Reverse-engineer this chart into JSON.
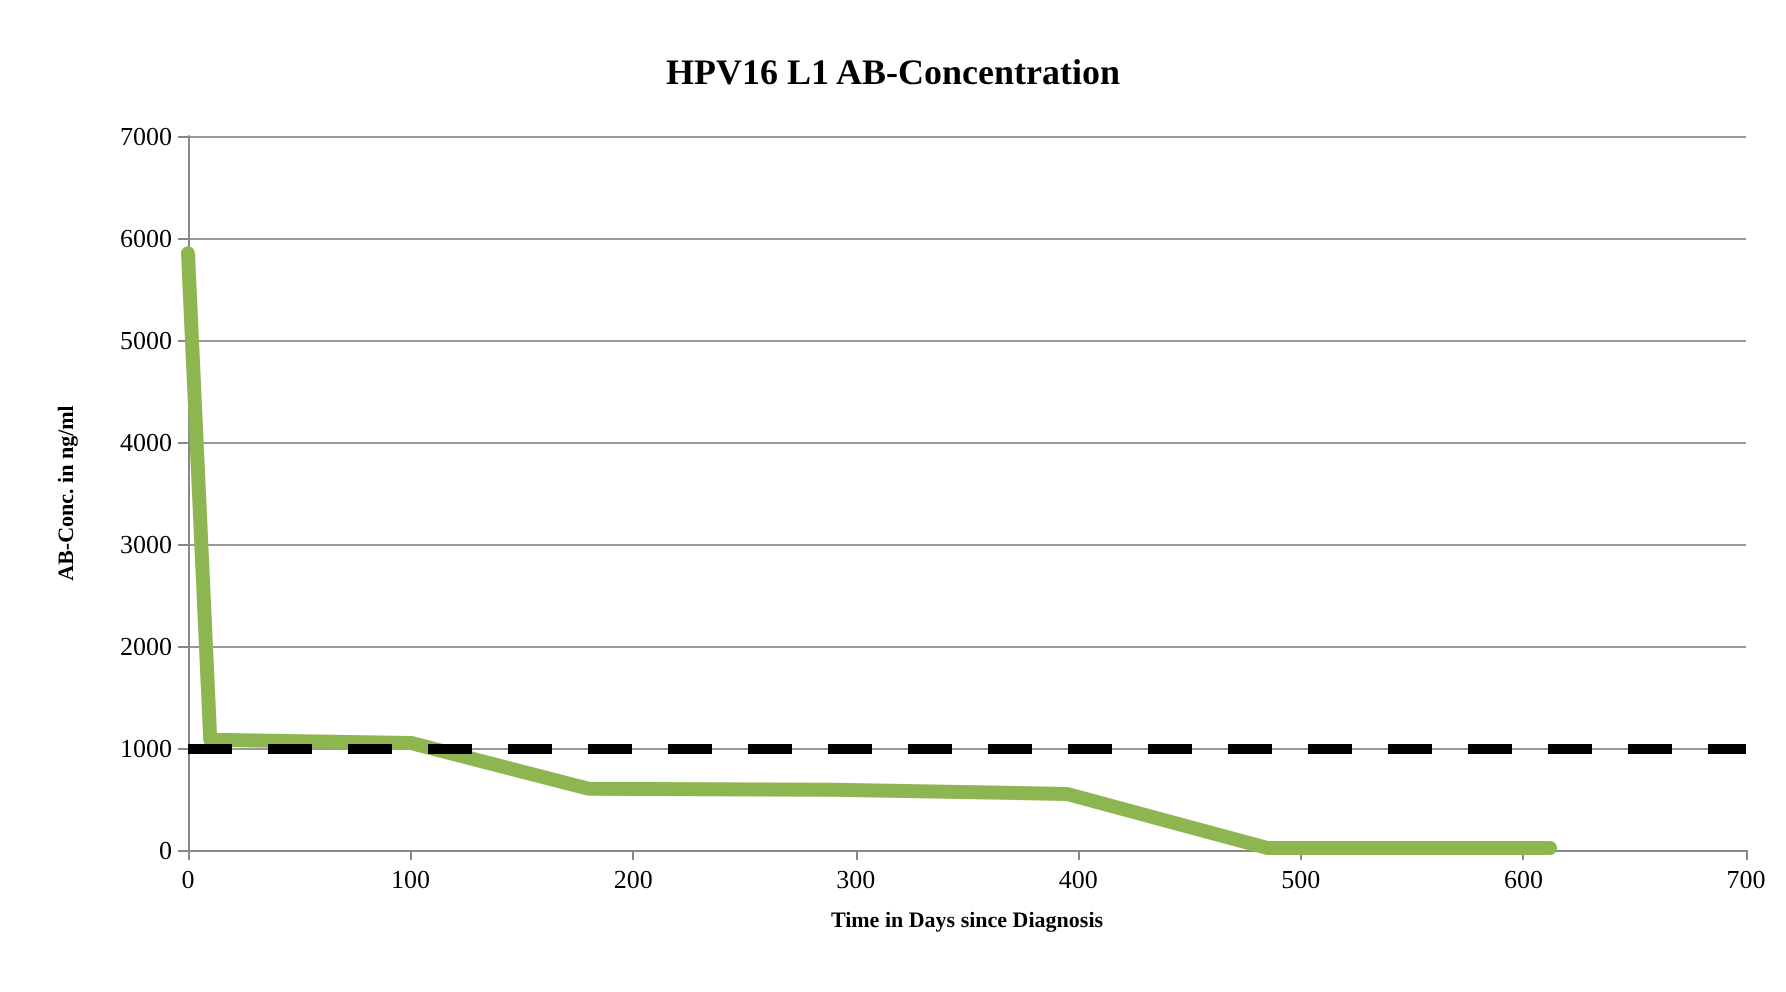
{
  "chart_data": {
    "type": "line",
    "title": "HPV16 L1 AB-Concentration",
    "xlabel": "Time in Days since Diagnosis",
    "ylabel": "AB-Conc. in ng/ml",
    "x": [
      0,
      10,
      100,
      180,
      290,
      395,
      485,
      612
    ],
    "series": [
      {
        "color": "#8db650",
        "values": [
          5850,
          1080,
          1050,
          600,
          590,
          550,
          20,
          20
        ]
      }
    ],
    "xlim": [
      0,
      700
    ],
    "xticks": [
      0,
      100,
      200,
      300,
      400,
      500,
      600,
      700
    ],
    "ylim": [
      0,
      7000
    ],
    "yticks": [
      0,
      1000,
      2000,
      3000,
      4000,
      5000,
      6000,
      7000
    ],
    "ref_lines": [
      {
        "axis": "y",
        "value": 1000,
        "color": "#000000",
        "line_style": "dashed"
      }
    ],
    "grid": "y",
    "line_style": "solid"
  }
}
